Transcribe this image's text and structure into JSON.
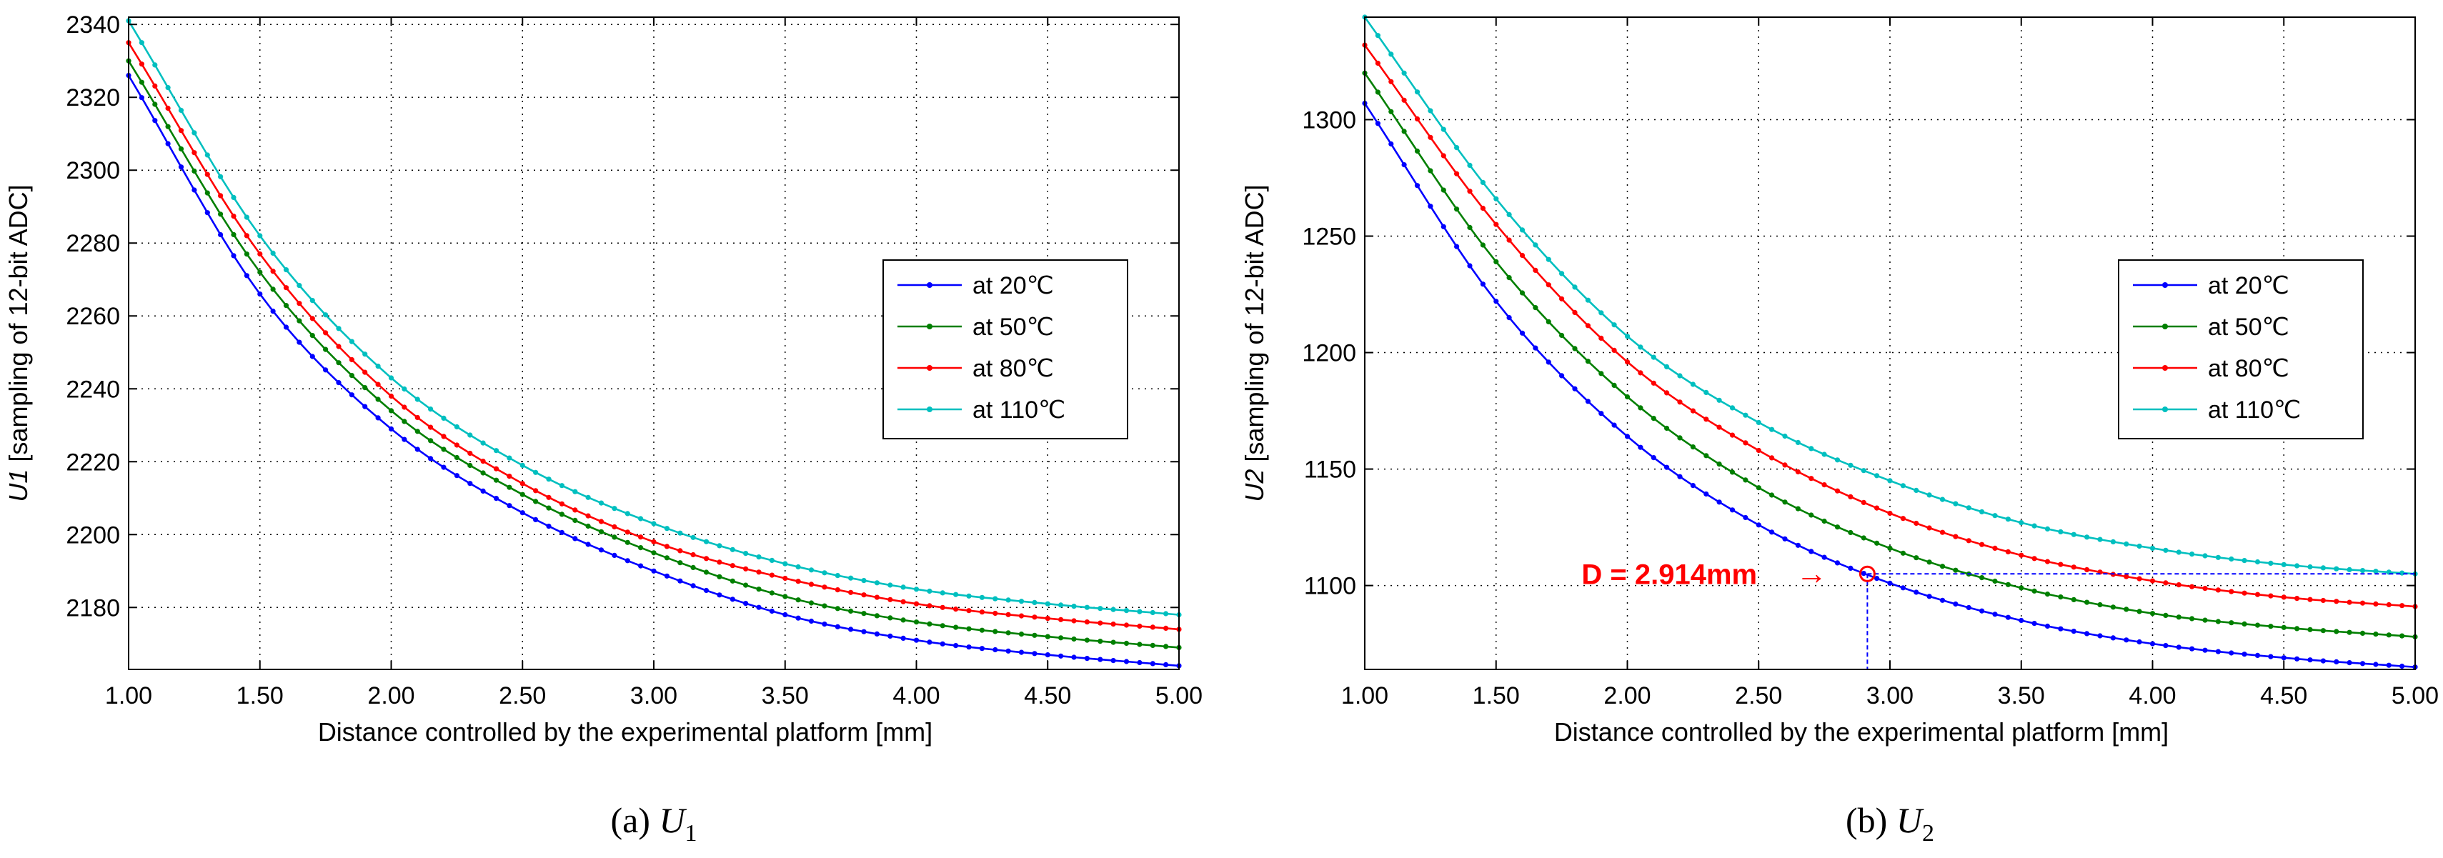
{
  "chart_data": [
    {
      "type": "line",
      "id": "a",
      "caption_prefix": "(a)",
      "caption_symbol": "U",
      "caption_subscript": "1",
      "xlabel": "Distance controlled by the experimental platform [mm]",
      "ylabel_italic": "U1",
      "ylabel_rest": " [sampling of 12-bit ADC]",
      "xlim": [
        1.0,
        5.0
      ],
      "ylim": [
        2163,
        2342
      ],
      "xticks": [
        1.0,
        1.5,
        2.0,
        2.5,
        3.0,
        3.5,
        4.0,
        4.5,
        5.0
      ],
      "xtick_labels": [
        "1.00",
        "1.50",
        "2.00",
        "2.50",
        "3.00",
        "3.50",
        "4.00",
        "4.50",
        "5.00"
      ],
      "yticks": [
        2180,
        2200,
        2220,
        2240,
        2260,
        2280,
        2300,
        2320,
        2340
      ],
      "ytick_labels": [
        "2180",
        "2200",
        "2220",
        "2240",
        "2260",
        "2280",
        "2300",
        "2320",
        "2340"
      ],
      "grid": true,
      "legend_position": "right-middle",
      "marker_step": 0.05,
      "series": [
        {
          "name": "at 20℃",
          "color": "#0000ff",
          "x": [
            1.0,
            1.5,
            2.0,
            2.5,
            3.0,
            3.5,
            4.0,
            4.5,
            5.0
          ],
          "values": [
            2326,
            2266,
            2229,
            2206,
            2190,
            2178,
            2171,
            2167,
            2164
          ]
        },
        {
          "name": "at 50℃",
          "color": "#007f00",
          "x": [
            1.0,
            1.5,
            2.0,
            2.5,
            3.0,
            3.5,
            4.0,
            4.5,
            5.0
          ],
          "values": [
            2330,
            2272,
            2234,
            2211,
            2195,
            2183,
            2176,
            2172,
            2169
          ]
        },
        {
          "name": "at 80℃",
          "color": "#ff0000",
          "x": [
            1.0,
            1.5,
            2.0,
            2.5,
            3.0,
            3.5,
            4.0,
            4.5,
            5.0
          ],
          "values": [
            2335,
            2277,
            2238,
            2214,
            2198,
            2188,
            2181,
            2177,
            2174
          ]
        },
        {
          "name": "at 110℃",
          "color": "#00bfbf",
          "x": [
            1.0,
            1.5,
            2.0,
            2.5,
            3.0,
            3.5,
            4.0,
            4.5,
            5.0
          ],
          "values": [
            2341,
            2282,
            2243,
            2219,
            2203,
            2192,
            2185,
            2181,
            2178
          ]
        }
      ]
    },
    {
      "type": "line",
      "id": "b",
      "caption_prefix": "(b)",
      "caption_symbol": "U",
      "caption_subscript": "2",
      "xlabel": "Distance controlled by the experimental platform [mm]",
      "ylabel_italic": "U2",
      "ylabel_rest": " [sampling of 12-bit ADC]",
      "xlim": [
        1.0,
        5.0
      ],
      "ylim": [
        1064,
        1344
      ],
      "xticks": [
        1.0,
        1.5,
        2.0,
        2.5,
        3.0,
        3.5,
        4.0,
        4.5,
        5.0
      ],
      "xtick_labels": [
        "1.00",
        "1.50",
        "2.00",
        "2.50",
        "3.00",
        "3.50",
        "4.00",
        "4.50",
        "5.00"
      ],
      "yticks": [
        1100,
        1150,
        1200,
        1250,
        1300
      ],
      "ytick_labels": [
        "1100",
        "1150",
        "1200",
        "1250",
        "1300"
      ],
      "grid": true,
      "legend_position": "right-middle",
      "marker_step": 0.05,
      "series": [
        {
          "name": "at 20℃",
          "color": "#0000ff",
          "x": [
            1.0,
            1.5,
            2.0,
            2.5,
            3.0,
            3.5,
            4.0,
            4.5,
            5.0
          ],
          "values": [
            1307,
            1222,
            1164,
            1126,
            1101,
            1085,
            1075,
            1069,
            1065
          ]
        },
        {
          "name": "at 50℃",
          "color": "#007f00",
          "x": [
            1.0,
            1.5,
            2.0,
            2.5,
            3.0,
            3.5,
            4.0,
            4.5,
            5.0
          ],
          "values": [
            1320,
            1239,
            1181,
            1142,
            1116,
            1099,
            1088,
            1082,
            1078
          ]
        },
        {
          "name": "at 80℃",
          "color": "#ff0000",
          "x": [
            1.0,
            1.5,
            2.0,
            2.5,
            3.0,
            3.5,
            4.0,
            4.5,
            5.0
          ],
          "values": [
            1332,
            1255,
            1196,
            1158,
            1131,
            1113,
            1102,
            1095,
            1091
          ]
        },
        {
          "name": "at 110℃",
          "color": "#00bfbf",
          "x": [
            1.0,
            1.5,
            2.0,
            2.5,
            3.0,
            3.5,
            4.0,
            4.5,
            5.0
          ],
          "values": [
            1344,
            1266,
            1207,
            1170,
            1145,
            1127,
            1116,
            1109,
            1105
          ]
        }
      ],
      "annotation": {
        "text": "D = 2.914mm",
        "arrow": "→",
        "color": "#ff0000",
        "line_color": "#0000ff",
        "x": 2.914,
        "y": 1105
      }
    }
  ]
}
